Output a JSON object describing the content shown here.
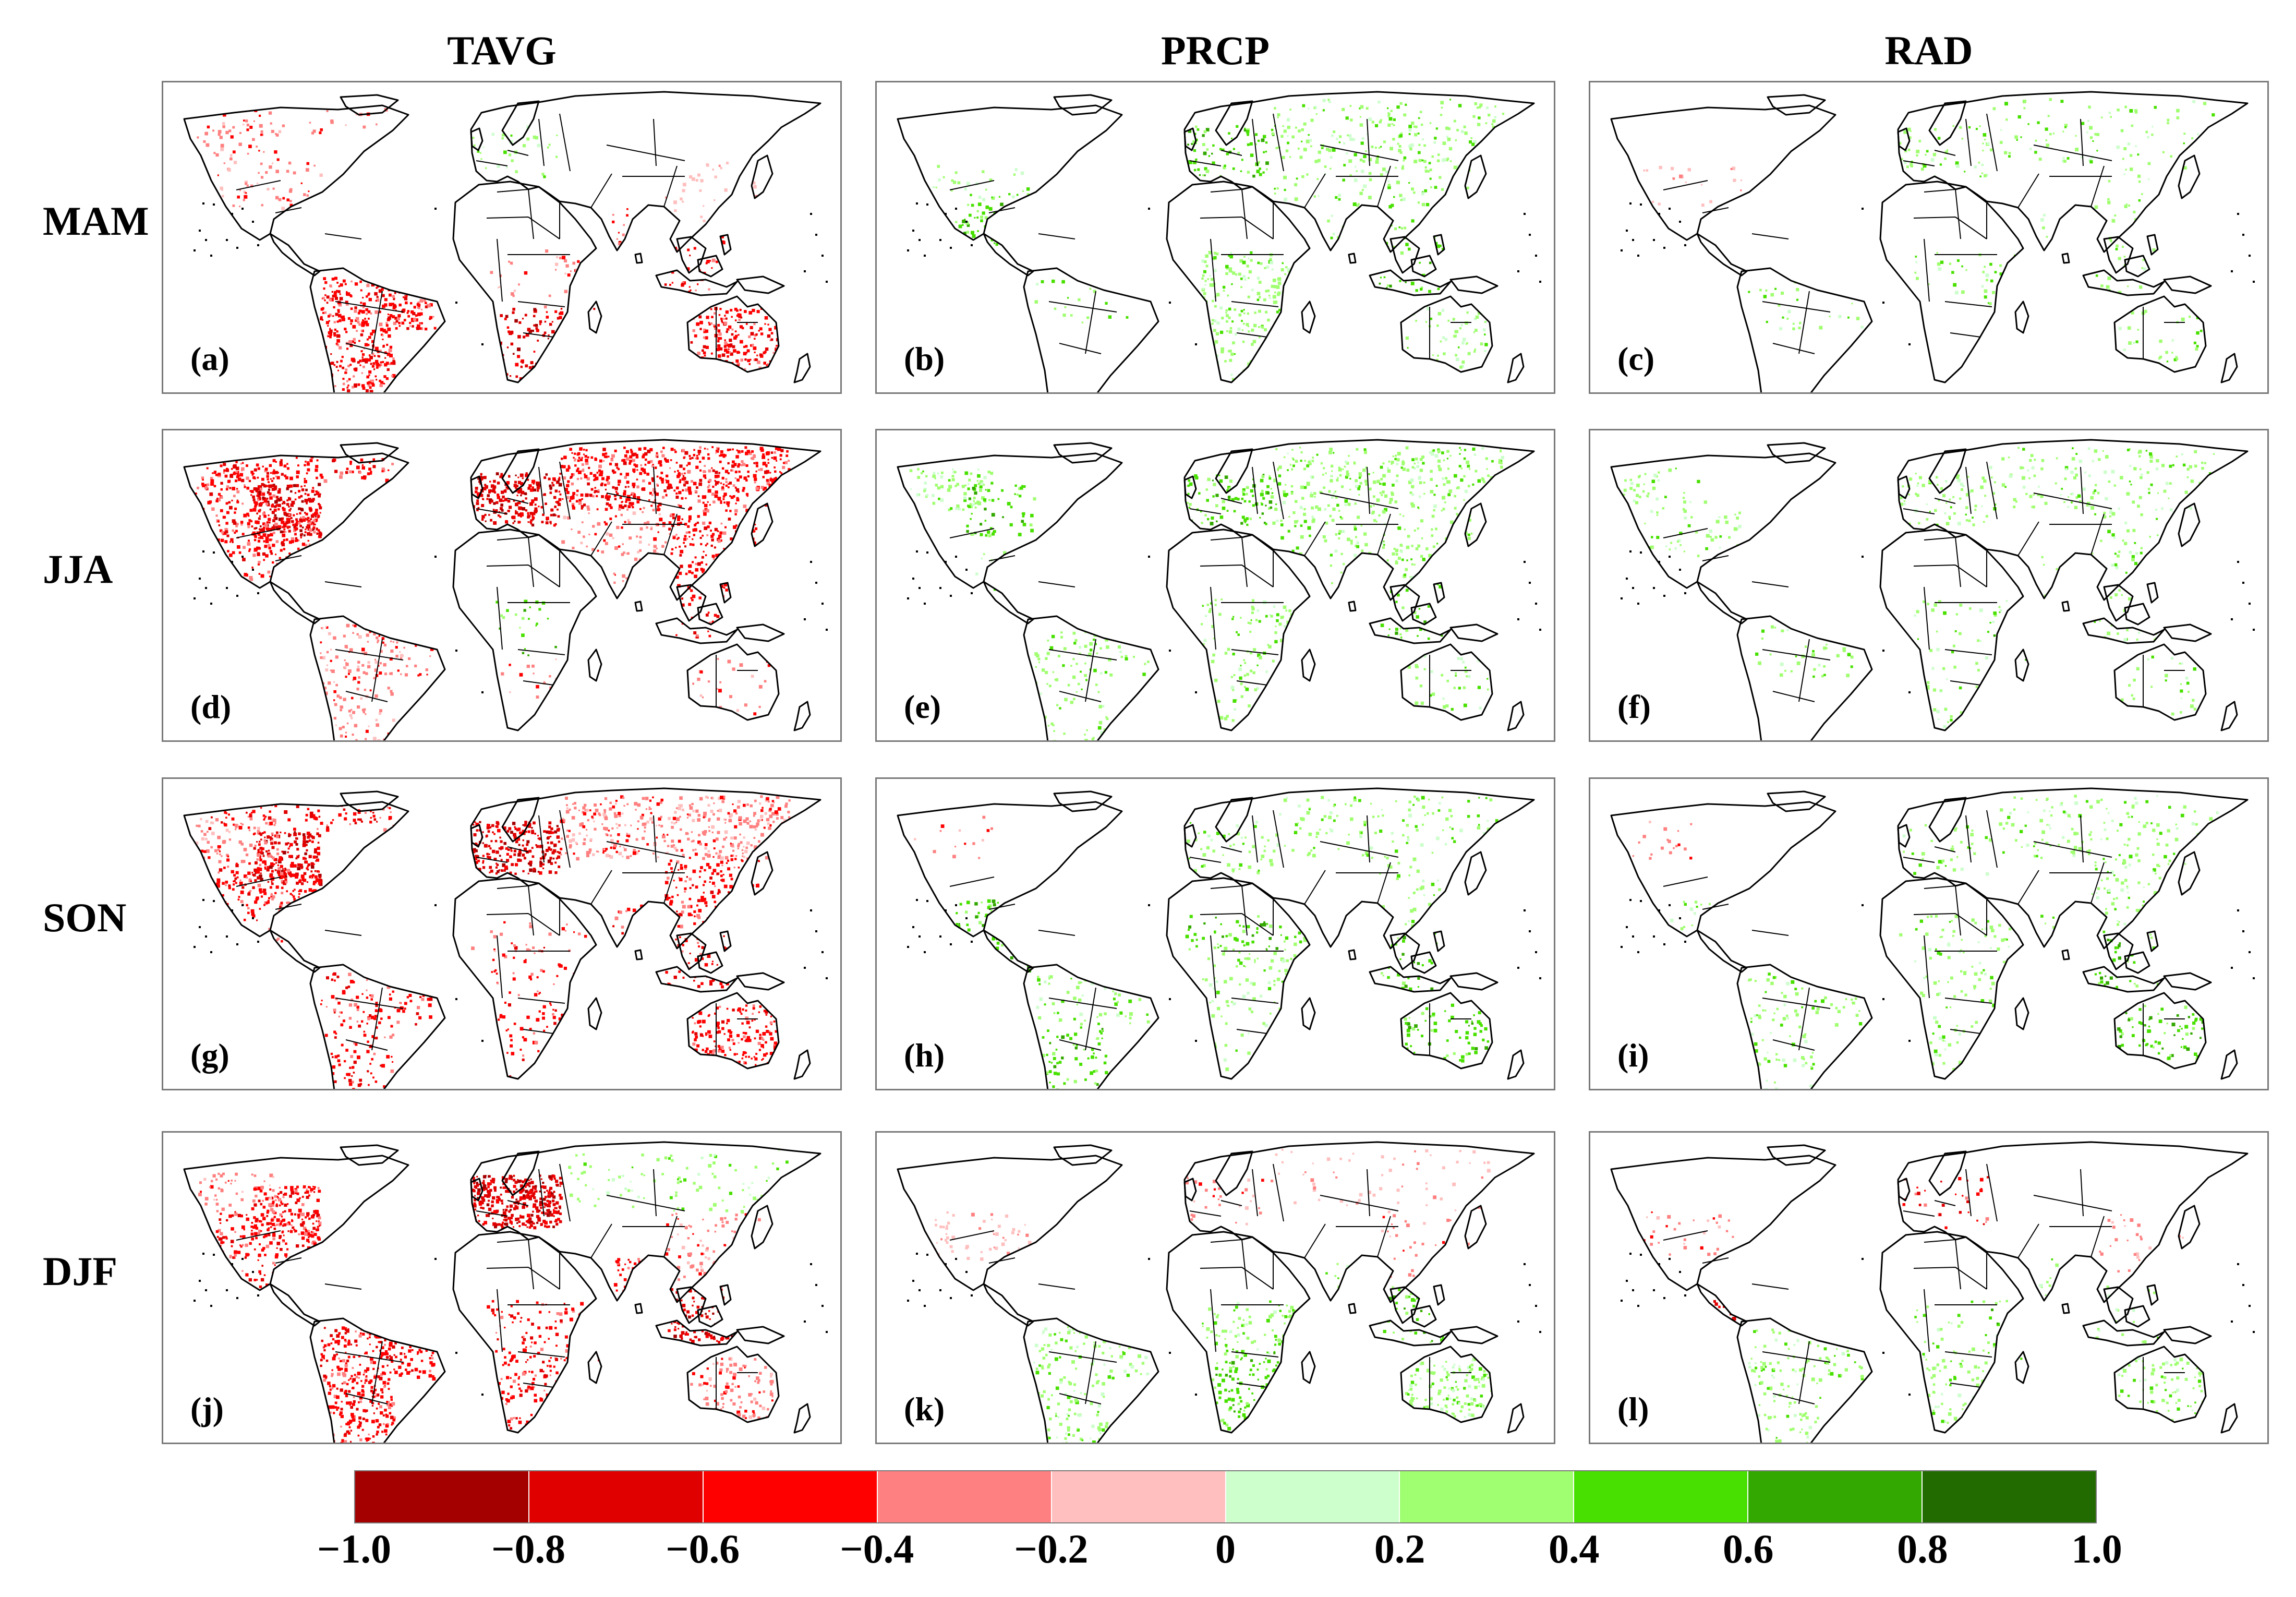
{
  "columns": [
    {
      "label": "TAVG",
      "key": "tavg"
    },
    {
      "label": "PRCP",
      "key": "prcp"
    },
    {
      "label": "RAD",
      "key": "rad"
    }
  ],
  "rows": [
    {
      "label": "MAM",
      "panels": [
        {
          "tag": "(a)",
          "col": "tavg"
        },
        {
          "tag": "(b)",
          "col": "prcp"
        },
        {
          "tag": "(c)",
          "col": "rad"
        }
      ]
    },
    {
      "label": "JJA",
      "panels": [
        {
          "tag": "(d)",
          "col": "tavg"
        },
        {
          "tag": "(e)",
          "col": "prcp"
        },
        {
          "tag": "(f)",
          "col": "rad"
        }
      ]
    },
    {
      "label": "SON",
      "panels": [
        {
          "tag": "(g)",
          "col": "tavg"
        },
        {
          "tag": "(h)",
          "col": "prcp"
        },
        {
          "tag": "(i)",
          "col": "rad"
        }
      ]
    },
    {
      "label": "DJF",
      "panels": [
        {
          "tag": "(j)",
          "col": "tavg"
        },
        {
          "tag": "(k)",
          "col": "prcp"
        },
        {
          "tag": "(l)",
          "col": "rad"
        }
      ]
    }
  ],
  "colorbar": {
    "ticks": [
      "−1.0",
      "−0.8",
      "−0.6",
      "−0.4",
      "−0.2",
      "0",
      "0.2",
      "0.4",
      "0.6",
      "0.8",
      "1.0"
    ],
    "colors": [
      "#a50000",
      "#e00000",
      "#ff0000",
      "#ff8080",
      "#ffbfbf",
      "#ccffcc",
      "#a0ff70",
      "#48e000",
      "#33a800",
      "#226b00"
    ]
  },
  "palette": {
    "map_outline": "#000000",
    "panel_border": "#7a7a7a",
    "strong_negative": "#e00000",
    "weak_negative": "#ff8080",
    "weak_positive": "#a0ff70",
    "strong_positive": "#48e000"
  }
}
